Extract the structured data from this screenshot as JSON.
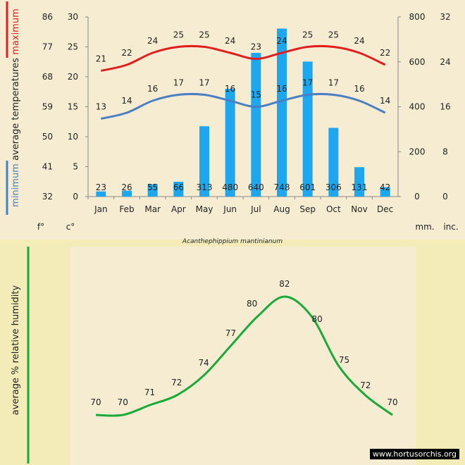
{
  "chart_data": [
    {
      "type": "bar",
      "title": "",
      "caption": "Acanthephippium mantinianum",
      "categories": [
        "Jan",
        "Feb",
        "Mar",
        "Apr",
        "May",
        "Jun",
        "Jul",
        "Aug",
        "Sep",
        "Oct",
        "Nov",
        "Dec"
      ],
      "series": [
        {
          "name": "maximum",
          "unit": "°C",
          "color": "#e02020",
          "values": [
            21,
            22,
            24,
            25,
            25,
            24,
            23,
            24,
            25,
            25,
            24,
            22
          ]
        },
        {
          "name": "minimum",
          "unit": "°C",
          "color": "#4a7fc4",
          "values": [
            13,
            14,
            16,
            17,
            17,
            16,
            15,
            16,
            17,
            17,
            16,
            14
          ]
        },
        {
          "name": "precipitation",
          "unit": "mm",
          "color": "#1ea7ee",
          "values": [
            23,
            26,
            55,
            66,
            313,
            480,
            640,
            748,
            601,
            306,
            131,
            42
          ]
        }
      ],
      "left_axis_c": {
        "unit_label": "c°",
        "ticks": [
          "0",
          "5",
          "10",
          "15",
          "20",
          "25",
          "30"
        ],
        "range": [
          0,
          30
        ]
      },
      "left_axis_f": {
        "unit_label": "f°",
        "ticks": [
          "32",
          "41",
          "50",
          "59",
          "68",
          "77",
          "86"
        ],
        "range": [
          32,
          86
        ]
      },
      "right_axis_mm": {
        "unit_label": "mm.",
        "ticks": [
          "0",
          "200",
          "400",
          "600",
          "800"
        ],
        "range": [
          0,
          800
        ]
      },
      "right_axis_in": {
        "unit_label": "inc.",
        "ticks": [
          "0",
          "8",
          "16",
          "24",
          "32"
        ],
        "range": [
          0,
          32
        ]
      },
      "side_labels": {
        "max": "maximum",
        "temps": "average temperatures",
        "min": "minimum"
      },
      "colors": {
        "max_line": "#e02020",
        "min_line": "#4a7fc4",
        "bars": "#1ea7ee"
      }
    },
    {
      "type": "line",
      "title": "",
      "ylabel": "average %  relative humidity",
      "categories": [
        "Jan",
        "Feb",
        "Mar",
        "Apr",
        "May",
        "Jun",
        "Jul",
        "Aug",
        "Sep",
        "Oct",
        "Nov",
        "Dec"
      ],
      "values": [
        70,
        70,
        71,
        72,
        74,
        77,
        80,
        82,
        80,
        75,
        72,
        70
      ],
      "color": "#1aaa3a"
    }
  ],
  "watermark": "www.hortusorchis.org"
}
